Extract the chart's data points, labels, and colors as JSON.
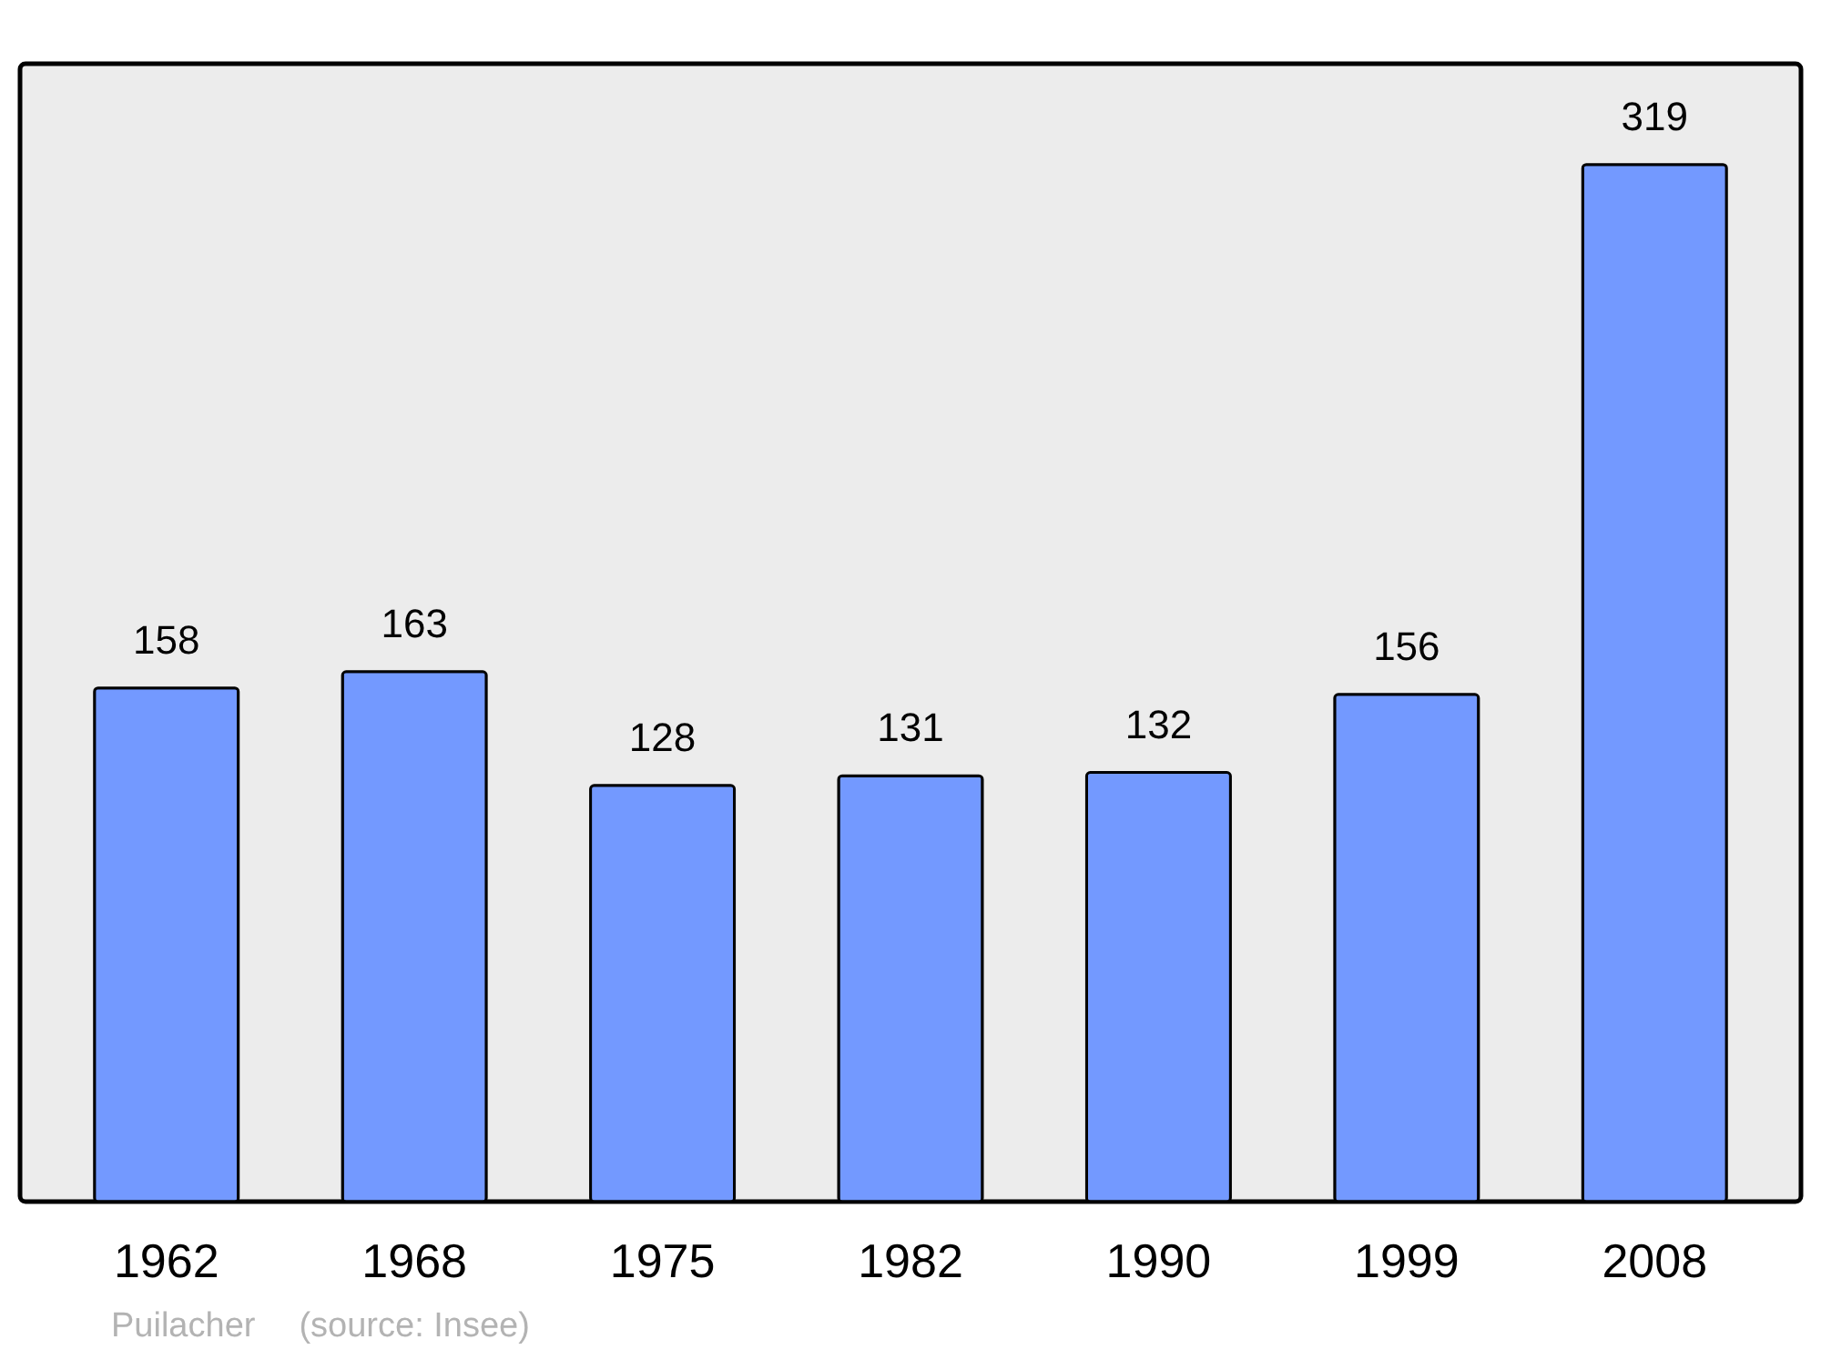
{
  "chart_data": {
    "type": "bar",
    "categories": [
      "1962",
      "1968",
      "1975",
      "1982",
      "1990",
      "1999",
      "2008"
    ],
    "values": [
      158,
      163,
      128,
      131,
      132,
      156,
      319
    ],
    "color": "#7399ff",
    "data_labels": true,
    "annotations": [
      "Puilacher",
      "(source: Insee)"
    ]
  }
}
